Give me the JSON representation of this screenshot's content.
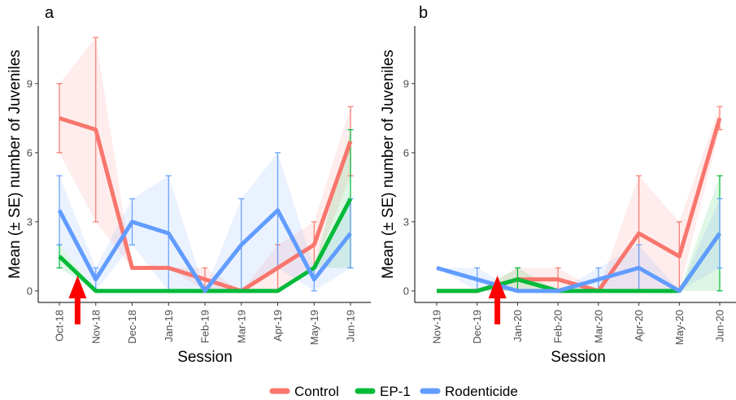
{
  "colors": {
    "Control": "#F8766D",
    "EP-1": "#00BA38",
    "Rodenticide": "#619CFF",
    "arrow": "#FF0000"
  },
  "legend": [
    "Control",
    "EP-1",
    "Rodenticide"
  ],
  "chart_data": [
    {
      "type": "line",
      "panel_label": "a",
      "xlabel": "Session",
      "ylabel": "Mean (± SE) number of Juveniles",
      "categories": [
        "Oct-18",
        "Nov-18",
        "Dec-18",
        "Jan-19",
        "Feb-19",
        "Mar-19",
        "Apr-19",
        "May-19",
        "Jun-19"
      ],
      "ylim": [
        -0.5,
        11.5
      ],
      "yticks": [
        0,
        3,
        6,
        9
      ],
      "grid": false,
      "arrow_between": [
        "Oct-18",
        "Nov-18"
      ],
      "series": [
        {
          "name": "Control",
          "values": [
            7.5,
            7,
            1,
            1,
            0.5,
            0,
            1,
            2,
            6.5
          ],
          "lower": [
            6,
            3,
            1,
            1,
            0,
            0,
            0,
            1,
            5
          ],
          "upper": [
            9,
            11,
            1,
            1,
            1,
            0,
            2,
            3,
            8
          ]
        },
        {
          "name": "EP-1",
          "values": [
            1.5,
            0,
            0,
            0,
            0,
            0,
            0,
            1,
            4
          ],
          "lower": [
            1,
            0,
            0,
            0,
            0,
            0,
            0,
            1,
            1
          ],
          "upper": [
            2,
            0,
            0,
            0,
            0,
            0,
            0,
            1,
            7
          ]
        },
        {
          "name": "Rodenticide",
          "values": [
            3.5,
            0.5,
            3,
            2.5,
            0,
            2,
            3.5,
            0.5,
            2.5
          ],
          "lower": [
            2,
            0,
            2,
            0,
            0,
            0,
            1,
            0,
            1
          ],
          "upper": [
            5,
            1,
            4,
            5,
            0,
            4,
            6,
            1,
            4
          ]
        }
      ]
    },
    {
      "type": "line",
      "panel_label": "b",
      "xlabel": "Session",
      "ylabel": "Mean (± SE) number of Juveniles",
      "categories": [
        "Nov-19",
        "Dec-19",
        "Jan-20",
        "Feb-20",
        "Mar-20",
        "Apr-20",
        "May-20",
        "Jun-20"
      ],
      "ylim": [
        -0.5,
        11.5
      ],
      "yticks": [
        0,
        3,
        6,
        9
      ],
      "grid": false,
      "arrow_between": [
        "Dec-19",
        "Jan-20"
      ],
      "series": [
        {
          "name": "Control",
          "values": [
            0,
            0,
            0.5,
            0.5,
            0,
            2.5,
            1.5,
            7.5
          ],
          "lower": [
            0,
            0,
            0,
            0,
            0,
            0,
            0,
            7
          ],
          "upper": [
            0,
            0,
            1,
            1,
            0,
            5,
            3,
            8
          ]
        },
        {
          "name": "EP-1",
          "values": [
            0,
            0,
            0.5,
            0,
            0,
            0,
            0,
            2.5
          ],
          "lower": [
            0,
            0,
            0,
            0,
            0,
            0,
            0,
            0
          ],
          "upper": [
            0,
            0,
            1,
            0,
            0,
            0,
            0,
            5
          ]
        },
        {
          "name": "Rodenticide",
          "values": [
            1,
            0.5,
            0,
            0,
            0.5,
            1,
            0,
            2.5
          ],
          "lower": [
            1,
            0,
            0,
            0,
            0,
            0,
            0,
            1
          ],
          "upper": [
            1,
            1,
            0,
            0,
            1,
            2,
            0,
            4
          ]
        }
      ]
    }
  ]
}
